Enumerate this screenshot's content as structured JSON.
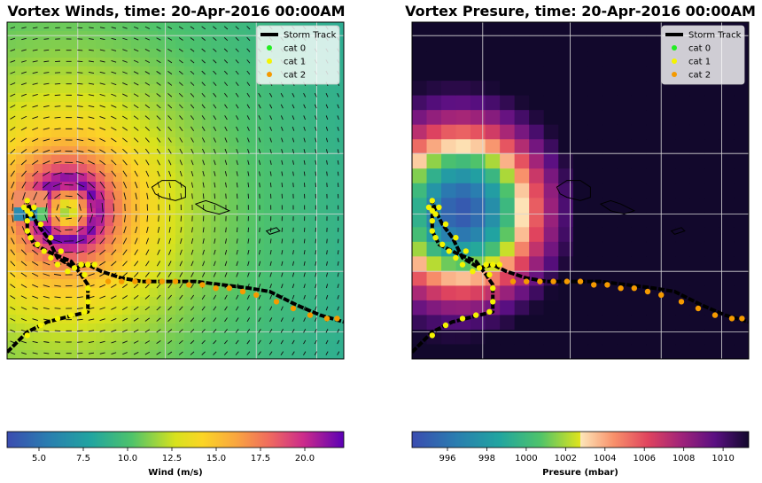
{
  "chart_data": [
    {
      "type": "heatmap",
      "title": "Vortex Winds, time: 20-Apr-2016 00:00AM",
      "legend": {
        "placement": "top-right",
        "entries": [
          {
            "label": "Storm Track",
            "color": "#000000",
            "kind": "line"
          },
          {
            "label": "cat 0",
            "color": "#22ee22",
            "kind": "point"
          },
          {
            "label": "cat 1",
            "color": "#f4f400",
            "kind": "point"
          },
          {
            "label": "cat 2",
            "color": "#f59a00",
            "kind": "point"
          }
        ]
      },
      "colorbar": {
        "label": "Wind (m/s)",
        "range": [
          3.2,
          22.2
        ],
        "ticks": [
          "5.0",
          "7.5",
          "10.0",
          "12.5",
          "15.0",
          "17.5",
          "20.0"
        ],
        "tick_values": [
          5.0,
          7.5,
          10.0,
          12.5,
          15.0,
          17.5,
          20.0
        ]
      },
      "grid": true
    },
    {
      "type": "heatmap",
      "title": "Vortex Presure, time: 20-Apr-2016 00:00AM",
      "legend": {
        "placement": "top-right",
        "entries": [
          {
            "label": "Storm Track",
            "color": "#000000",
            "kind": "line"
          },
          {
            "label": "cat 0",
            "color": "#22ee22",
            "kind": "point"
          },
          {
            "label": "cat 1",
            "color": "#f4f400",
            "kind": "point"
          },
          {
            "label": "cat 2",
            "color": "#f59a00",
            "kind": "point"
          }
        ]
      },
      "colorbar": {
        "label": "Presure (mbar)",
        "range": [
          994.2,
          1011.3
        ],
        "ticks": [
          "996",
          "998",
          "1000",
          "1002",
          "1004",
          "1006",
          "1008",
          "1010"
        ],
        "tick_values": [
          996,
          998,
          1000,
          1002,
          1004,
          1006,
          1008,
          1010
        ]
      },
      "grid": true
    }
  ]
}
